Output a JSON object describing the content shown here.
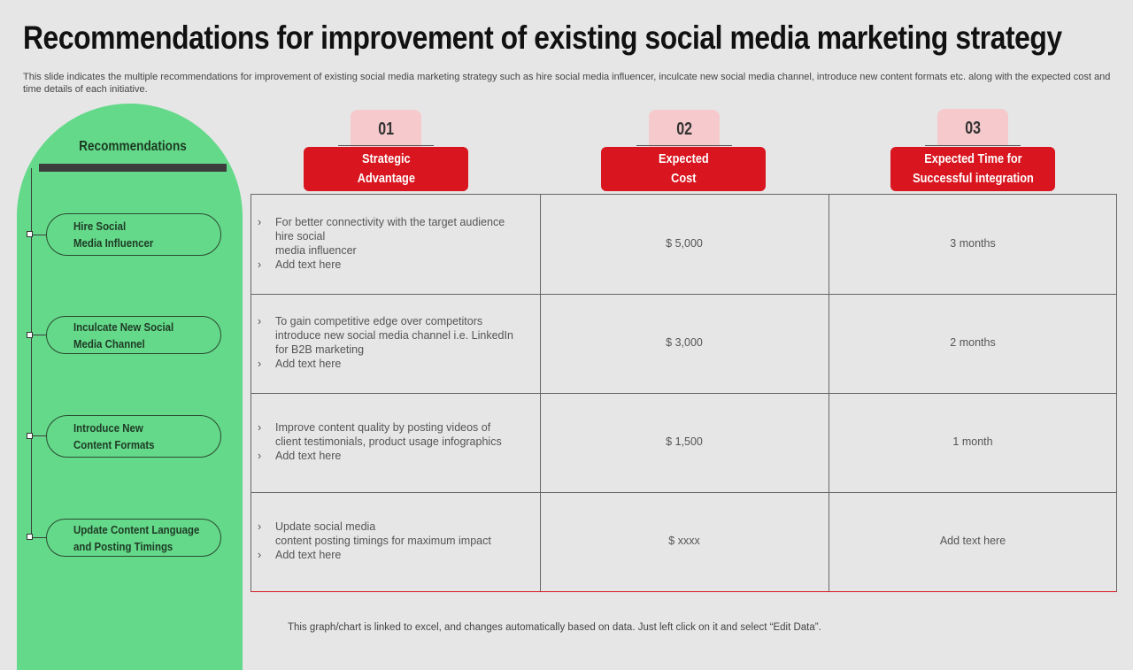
{
  "title": "Recommendations for improvement of existing social media marketing strategy",
  "subtitle": "This slide indicates the multiple recommendations for improvement of existing social media marketing strategy such as hire social media influencer, inculcate new social media channel, introduce new content formats etc. along with the expected cost and time details of each initiative.",
  "panel": {
    "title": "Recommendations",
    "items": [
      "Hire Social\nMedia Influencer",
      "Inculcate New Social\nMedia Channel",
      "Introduce New\nContent Formats",
      "Update Content Language\nand Posting Timings"
    ]
  },
  "columns": [
    {
      "num": "01",
      "header": "Strategic\nAdvantage"
    },
    {
      "num": "02",
      "header": "Expected\nCost"
    },
    {
      "num": "03",
      "header": "Expected Time for\nSuccessful integration"
    }
  ],
  "bullet_marker": "›",
  "rows": [
    {
      "bullets": [
        [
          "For better connectivity with the target audience",
          "hire social",
          "media influencer"
        ],
        [
          "Add text here"
        ]
      ],
      "cost": "$ 5,000",
      "time": "3 months"
    },
    {
      "bullets": [
        [
          "To gain competitive edge over competitors",
          "introduce new social media channel i.e. LinkedIn",
          "for B2B marketing"
        ],
        [
          "Add text here"
        ]
      ],
      "cost": "$ 3,000",
      "time": "2 months"
    },
    {
      "bullets": [
        [
          "Improve  content quality by posting videos of",
          "client testimonials, product usage infographics"
        ],
        [
          "Add text here"
        ]
      ],
      "cost": "$ 1,500",
      "time": "1 month"
    },
    {
      "bullets": [
        [
          "Update social media",
          "content posting timings for maximum impact"
        ],
        [
          "Add text here"
        ]
      ],
      "cost": "$ xxxx",
      "time": "Add text here"
    }
  ],
  "footnote": "This graph/chart is linked to excel,  and changes automatically based on data. Just left click on it and select “Edit Data”."
}
